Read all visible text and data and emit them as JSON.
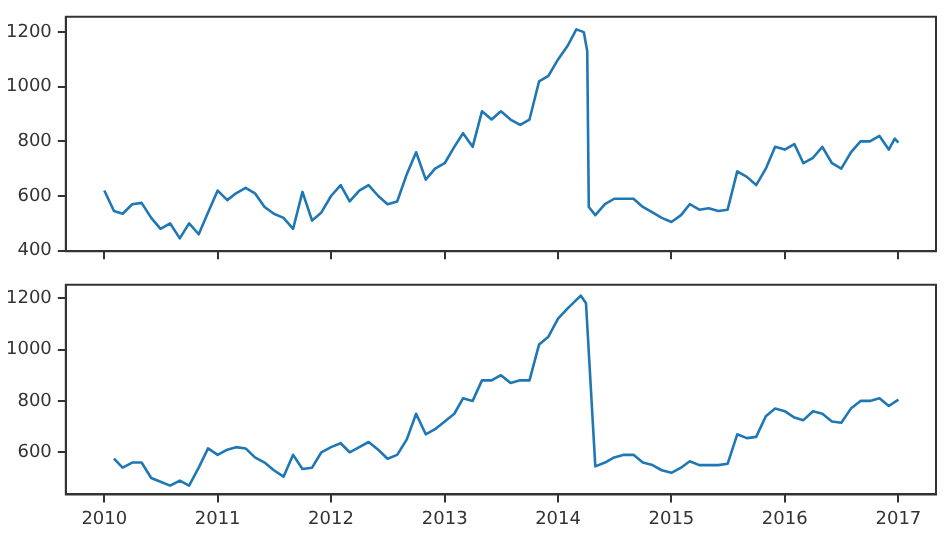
{
  "chart_data": [
    {
      "type": "line",
      "x": [
        "2010-01",
        "2010-02",
        "2010-03",
        "2010-04",
        "2010-05",
        "2010-06",
        "2010-07",
        "2010-08",
        "2010-09",
        "2010-10",
        "2010-11",
        "2010-12",
        "2011-01",
        "2011-02",
        "2011-03",
        "2011-04",
        "2011-05",
        "2011-06",
        "2011-07",
        "2011-08",
        "2011-09",
        "2011-10",
        "2011-11",
        "2011-12",
        "2012-01",
        "2012-02",
        "2012-03",
        "2012-04",
        "2012-05",
        "2012-06",
        "2012-07",
        "2012-08",
        "2012-09",
        "2012-10",
        "2012-11",
        "2012-12",
        "2013-01",
        "2013-02",
        "2013-03",
        "2013-04",
        "2013-05",
        "2013-06",
        "2013-07",
        "2013-08",
        "2013-09",
        "2013-10",
        "2013-11",
        "2013-12",
        "2014-01",
        "2014-02",
        "2014-03",
        "2014-03-25",
        "2014-04-05",
        "2014-04-10",
        "2014-05",
        "2014-06",
        "2014-07",
        "2014-08",
        "2014-09",
        "2014-10",
        "2014-11",
        "2014-12",
        "2015-01",
        "2015-02",
        "2015-03",
        "2015-04",
        "2015-05",
        "2015-06",
        "2015-07",
        "2015-08",
        "2015-09",
        "2015-10",
        "2015-11",
        "2015-12",
        "2016-01",
        "2016-02",
        "2016-03",
        "2016-04",
        "2016-05",
        "2016-06",
        "2016-07",
        "2016-08",
        "2016-09",
        "2016-10",
        "2016-11",
        "2016-12",
        "2016-12-20",
        "2017-01"
      ],
      "series": [
        {
          "color": "#1f77b4",
          "values": [
            620,
            545,
            535,
            570,
            575,
            520,
            480,
            500,
            445,
            500,
            460,
            540,
            620,
            585,
            610,
            630,
            610,
            560,
            535,
            520,
            480,
            615,
            510,
            540,
            600,
            640,
            580,
            620,
            640,
            600,
            570,
            580,
            680,
            760,
            660,
            700,
            720,
            780,
            830,
            780,
            910,
            880,
            910,
            880,
            860,
            880,
            1020,
            1040,
            1100,
            1150,
            1210,
            1200,
            1130,
            560,
            530,
            570,
            590,
            590,
            590,
            560,
            540,
            520,
            505,
            530,
            570,
            550,
            555,
            545,
            550,
            690,
            670,
            640,
            700,
            780,
            770,
            790,
            720,
            740,
            780,
            720,
            700,
            760,
            800,
            800,
            820,
            770,
            810,
            795
          ]
        }
      ],
      "xlim": [
        "2009-08-30",
        "2017-05-02"
      ],
      "xticks": [
        "2010",
        "2011",
        "2012",
        "2013",
        "2014",
        "2015",
        "2016",
        "2017"
      ],
      "ylim": [
        398,
        1256
      ],
      "yticks": [
        400,
        600,
        800,
        1000,
        1200
      ],
      "tick_labels": "y",
      "grid": false,
      "marker": "none",
      "legend": false
    },
    {
      "type": "line",
      "x": [
        "2010-02",
        "2010-03",
        "2010-04",
        "2010-05",
        "2010-06",
        "2010-07",
        "2010-08",
        "2010-09",
        "2010-10",
        "2010-11",
        "2010-12",
        "2011-01",
        "2011-02",
        "2011-03",
        "2011-04",
        "2011-05",
        "2011-06",
        "2011-07",
        "2011-08",
        "2011-09",
        "2011-10",
        "2011-11",
        "2011-12",
        "2012-01",
        "2012-02",
        "2012-03",
        "2012-04",
        "2012-05",
        "2012-06",
        "2012-07",
        "2012-08",
        "2012-09",
        "2012-10",
        "2012-11",
        "2012-12",
        "2013-01",
        "2013-02",
        "2013-03",
        "2013-04",
        "2013-05",
        "2013-06",
        "2013-07",
        "2013-08",
        "2013-09",
        "2013-10",
        "2013-11",
        "2013-12",
        "2014-01",
        "2014-02",
        "2014-03-15",
        "2014-04-01",
        "2014-05-01",
        "2014-06",
        "2014-07",
        "2014-08",
        "2014-09",
        "2014-10",
        "2014-11",
        "2014-12",
        "2015-01",
        "2015-02",
        "2015-03",
        "2015-04",
        "2015-05",
        "2015-06",
        "2015-07",
        "2015-08",
        "2015-09",
        "2015-10",
        "2015-11",
        "2015-12",
        "2016-01",
        "2016-02",
        "2016-03",
        "2016-04",
        "2016-05",
        "2016-06",
        "2016-07",
        "2016-08",
        "2016-09",
        "2016-10",
        "2016-11",
        "2016-12",
        "2017-01"
      ],
      "series": [
        {
          "color": "#1f77b4",
          "values": [
            575,
            540,
            560,
            560,
            500,
            485,
            470,
            490,
            470,
            540,
            615,
            590,
            610,
            620,
            615,
            580,
            560,
            530,
            505,
            590,
            535,
            540,
            600,
            620,
            635,
            600,
            620,
            640,
            610,
            575,
            590,
            650,
            750,
            670,
            690,
            720,
            750,
            810,
            800,
            880,
            880,
            900,
            870,
            880,
            880,
            1020,
            1050,
            1120,
            1160,
            1210,
            1180,
            545,
            560,
            580,
            590,
            590,
            560,
            550,
            530,
            520,
            540,
            565,
            550,
            550,
            550,
            555,
            670,
            655,
            660,
            740,
            770,
            760,
            735,
            725,
            760,
            750,
            720,
            715,
            770,
            800,
            800,
            810,
            780,
            805
          ]
        }
      ],
      "xlim": [
        "2009-08-30",
        "2017-05-02"
      ],
      "xticks": [
        "2010",
        "2011",
        "2012",
        "2013",
        "2014",
        "2015",
        "2016",
        "2017"
      ],
      "ylim": [
        436,
        1252
      ],
      "yticks": [
        600,
        800,
        1000,
        1200
      ],
      "grid": false,
      "marker": "none",
      "legend": false
    }
  ]
}
